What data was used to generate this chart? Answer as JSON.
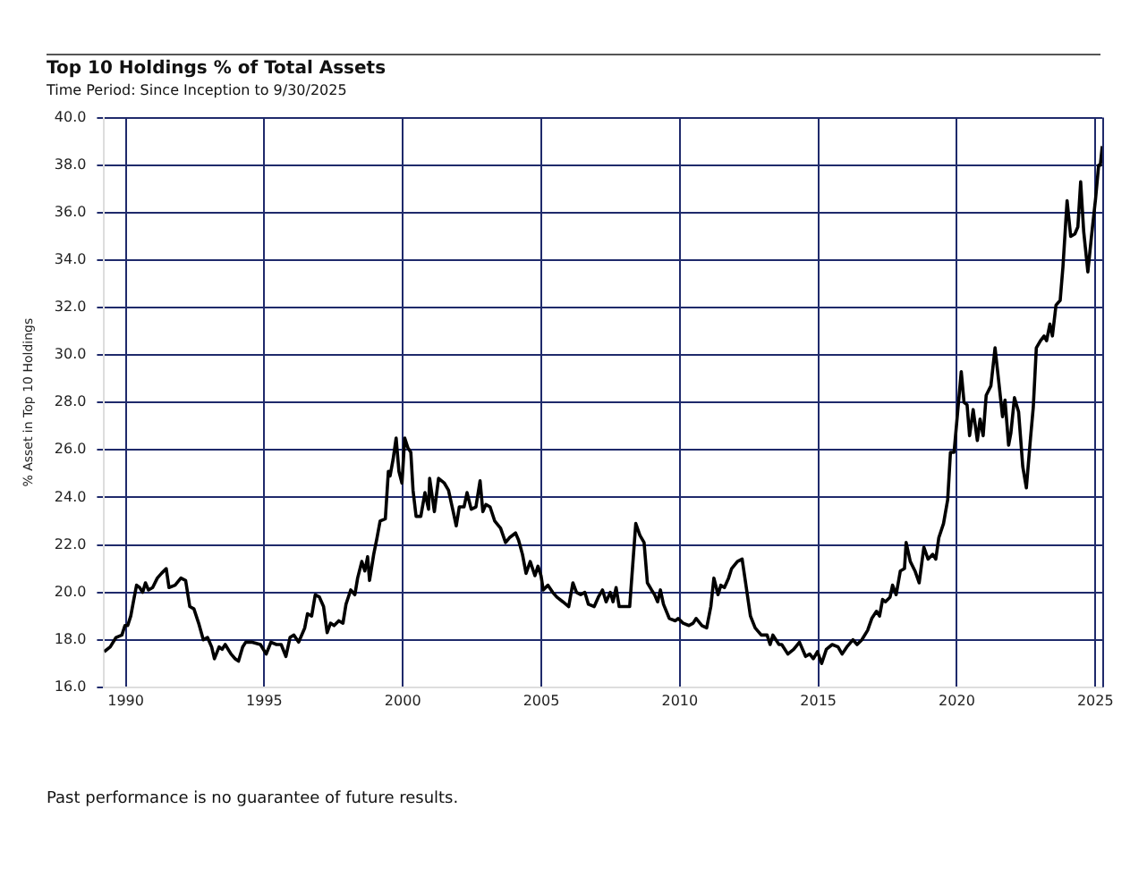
{
  "chart_data": {
    "type": "line",
    "title": "Top 10 Holdings % of Total Assets",
    "subtitle": "Time Period: Since Inception to 9/30/2025",
    "ylabel": "% Asset in Top 10 Holdings",
    "annotations": [
      "Past performance is no guarantee of future results."
    ],
    "xlim": [
      1989.72,
      2025.75
    ],
    "xticks": [
      {
        "value": 1990.5,
        "label": "1990"
      },
      {
        "value": 1995.5,
        "label": "1995"
      },
      {
        "value": 2000.5,
        "label": "2000"
      },
      {
        "value": 2005.5,
        "label": "2005"
      },
      {
        "value": 2010.5,
        "label": "2010"
      },
      {
        "value": 2015.5,
        "label": "2015"
      },
      {
        "value": 2020.5,
        "label": "2020"
      },
      {
        "value": 2025.5,
        "label": "2025"
      }
    ],
    "ylim": [
      16,
      40
    ],
    "yticks": [
      {
        "value": 16,
        "label": "16.0"
      },
      {
        "value": 18,
        "label": "18.0"
      },
      {
        "value": 20,
        "label": "20.0"
      },
      {
        "value": 22,
        "label": "22.0"
      },
      {
        "value": 24,
        "label": "24.0"
      },
      {
        "value": 26,
        "label": "26.0"
      },
      {
        "value": 28,
        "label": "28.0"
      },
      {
        "value": 30,
        "label": "30.0"
      },
      {
        "value": 32,
        "label": "32.0"
      },
      {
        "value": 34,
        "label": "34.0"
      },
      {
        "value": 36,
        "label": "36.0"
      },
      {
        "value": 38,
        "label": "38.0"
      },
      {
        "value": 40,
        "label": "40.0"
      }
    ],
    "grid": true,
    "marker": "none",
    "line_style": "solid",
    "series": [
      {
        "color": "#000000",
        "x": [
          1989.72,
          1989.94,
          1990.15,
          1990.36,
          1990.47,
          1990.57,
          1990.68,
          1990.79,
          1990.89,
          1991.0,
          1991.11,
          1991.21,
          1991.32,
          1991.47,
          1991.64,
          1991.79,
          1991.96,
          1992.06,
          1992.28,
          1992.49,
          1992.66,
          1992.81,
          1992.96,
          1993.13,
          1993.3,
          1993.45,
          1993.6,
          1993.7,
          1993.87,
          1993.98,
          1994.09,
          1994.3,
          1994.45,
          1994.57,
          1994.72,
          1994.83,
          1995.04,
          1995.36,
          1995.57,
          1995.74,
          1995.94,
          1996.11,
          1996.28,
          1996.43,
          1996.57,
          1996.74,
          1996.96,
          1997.06,
          1997.21,
          1997.34,
          1997.49,
          1997.64,
          1997.77,
          1997.89,
          1998.02,
          1998.19,
          1998.34,
          1998.45,
          1998.62,
          1998.77,
          1998.87,
          1999.02,
          1999.13,
          1999.23,
          1999.3,
          1999.45,
          1999.57,
          1999.68,
          1999.87,
          1999.98,
          2000.04,
          2000.15,
          2000.26,
          2000.36,
          2000.47,
          2000.57,
          2000.68,
          2000.79,
          2000.87,
          2000.98,
          2001.15,
          2001.3,
          2001.43,
          2001.47,
          2001.64,
          2001.79,
          2002.0,
          2002.15,
          2002.32,
          2002.43,
          2002.54,
          2002.71,
          2002.82,
          2002.97,
          2003.14,
          2003.29,
          2003.39,
          2003.5,
          2003.65,
          2003.82,
          2004.03,
          2004.21,
          2004.35,
          2004.57,
          2004.68,
          2004.82,
          2004.95,
          2005.1,
          2005.27,
          2005.38,
          2005.49,
          2005.57,
          2005.74,
          2005.91,
          2006.06,
          2006.28,
          2006.49,
          2006.64,
          2006.77,
          2006.92,
          2007.07,
          2007.2,
          2007.41,
          2007.56,
          2007.71,
          2007.84,
          2007.99,
          2008.09,
          2008.2,
          2008.31,
          2008.52,
          2008.69,
          2008.91,
          2009.06,
          2009.21,
          2009.33,
          2009.48,
          2009.59,
          2009.7,
          2009.8,
          2009.91,
          2010.12,
          2010.34,
          2010.44,
          2010.62,
          2010.83,
          2010.98,
          2011.09,
          2011.3,
          2011.47,
          2011.62,
          2011.73,
          2011.88,
          2011.98,
          2012.11,
          2012.26,
          2012.37,
          2012.58,
          2012.75,
          2012.9,
          2013.05,
          2013.22,
          2013.44,
          2013.65,
          2013.76,
          2013.86,
          2014.08,
          2014.18,
          2014.4,
          2014.61,
          2014.82,
          2015.04,
          2015.19,
          2015.32,
          2015.47,
          2015.62,
          2015.79,
          2016.0,
          2016.21,
          2016.36,
          2016.53,
          2016.75,
          2016.9,
          2017.07,
          2017.28,
          2017.43,
          2017.6,
          2017.71,
          2017.82,
          2017.92,
          2018.09,
          2018.18,
          2018.31,
          2018.46,
          2018.61,
          2018.67,
          2018.82,
          2018.99,
          2019.14,
          2019.31,
          2019.46,
          2019.63,
          2019.74,
          2019.85,
          2020.02,
          2020.17,
          2020.27,
          2020.4,
          2020.53,
          2020.66,
          2020.76,
          2020.87,
          2020.96,
          2021.09,
          2021.24,
          2021.34,
          2021.45,
          2021.56,
          2021.73,
          2021.88,
          2022.03,
          2022.15,
          2022.24,
          2022.37,
          2022.45,
          2022.58,
          2022.73,
          2022.88,
          2023.01,
          2023.16,
          2023.26,
          2023.37,
          2023.52,
          2023.65,
          2023.74,
          2023.86,
          2023.95,
          2024.08,
          2024.23,
          2024.33,
          2024.48,
          2024.61,
          2024.76,
          2024.87,
          2024.97,
          2025.08,
          2025.23,
          2025.36,
          2025.51,
          2025.62,
          2025.68,
          2025.75
        ],
        "values": [
          17.5,
          17.7,
          18.1,
          18.2,
          18.6,
          18.6,
          19.0,
          19.7,
          20.3,
          20.2,
          20.0,
          20.4,
          20.1,
          20.2,
          20.6,
          20.8,
          21.0,
          20.2,
          20.3,
          20.6,
          20.5,
          19.4,
          19.3,
          18.7,
          18.0,
          18.1,
          17.7,
          17.2,
          17.7,
          17.6,
          17.8,
          17.4,
          17.2,
          17.1,
          17.7,
          17.9,
          17.9,
          17.8,
          17.4,
          17.9,
          17.8,
          17.8,
          17.3,
          18.1,
          18.2,
          17.9,
          18.5,
          19.1,
          19.0,
          19.9,
          19.8,
          19.4,
          18.3,
          18.7,
          18.6,
          18.8,
          18.7,
          19.5,
          20.1,
          19.9,
          20.6,
          21.3,
          20.9,
          21.5,
          20.5,
          21.6,
          22.3,
          23.0,
          23.1,
          25.1,
          24.9,
          25.6,
          26.5,
          25.1,
          24.6,
          26.5,
          26.1,
          25.9,
          24.3,
          23.2,
          23.2,
          24.2,
          23.5,
          24.8,
          23.4,
          24.8,
          24.6,
          24.3,
          23.4,
          22.8,
          23.6,
          23.6,
          24.2,
          23.5,
          23.6,
          24.7,
          23.4,
          23.7,
          23.6,
          23.0,
          22.7,
          22.1,
          22.3,
          22.5,
          22.2,
          21.6,
          20.8,
          21.3,
          20.7,
          21.1,
          20.7,
          20.1,
          20.3,
          20.0,
          19.8,
          19.6,
          19.4,
          20.4,
          20.0,
          19.9,
          20.0,
          19.5,
          19.4,
          19.8,
          20.1,
          19.6,
          20.0,
          19.6,
          20.2,
          19.4,
          19.4,
          19.4,
          22.9,
          22.4,
          22.1,
          20.4,
          20.1,
          19.9,
          19.6,
          20.1,
          19.5,
          18.9,
          18.8,
          18.9,
          18.7,
          18.6,
          18.7,
          18.9,
          18.6,
          18.5,
          19.4,
          20.6,
          19.9,
          20.3,
          20.2,
          20.6,
          21.0,
          21.3,
          21.4,
          20.2,
          19.0,
          18.5,
          18.2,
          18.2,
          17.8,
          18.2,
          17.8,
          17.8,
          17.4,
          17.6,
          17.9,
          17.3,
          17.4,
          17.2,
          17.5,
          17.0,
          17.6,
          17.8,
          17.7,
          17.4,
          17.7,
          18.0,
          17.8,
          18.0,
          18.4,
          18.9,
          19.2,
          19.0,
          19.7,
          19.6,
          19.8,
          20.3,
          19.9,
          20.9,
          21.0,
          22.1,
          21.3,
          20.9,
          20.4,
          21.9,
          21.4,
          21.6,
          21.4,
          22.3,
          22.9,
          23.9,
          25.9,
          25.9,
          27.6,
          29.3,
          28.0,
          27.9,
          26.6,
          27.7,
          26.4,
          27.3,
          26.6,
          28.3,
          28.7,
          30.3,
          28.7,
          27.4,
          28.1,
          26.2,
          26.7,
          28.2,
          27.6,
          25.3,
          24.4,
          26.5,
          27.8,
          30.3,
          30.6,
          30.8,
          30.6,
          31.3,
          30.8,
          32.1,
          32.3,
          33.7,
          36.5,
          35.0,
          35.1,
          35.4,
          37.3,
          35.2,
          33.5,
          35.0,
          36.6,
          38.0,
          38.0,
          38.8
        ]
      }
    ]
  }
}
